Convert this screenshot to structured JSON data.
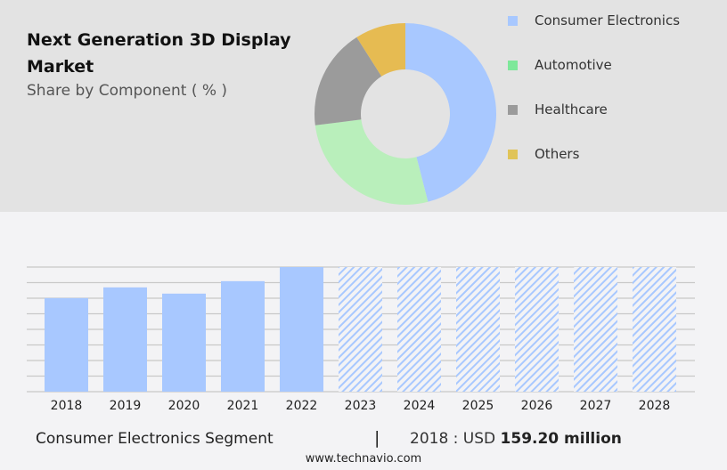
{
  "header": {
    "title": "Next Generation 3D Display Market",
    "subtitle": "Share by Component ( % )"
  },
  "chart_data": [
    {
      "type": "pie",
      "variant": "donut",
      "categories": [
        "Consumer Electronics",
        "Automotive",
        "Healthcare",
        "Others"
      ],
      "values": [
        46,
        27,
        18,
        9
      ],
      "colors": [
        "#a8c8ff",
        "#b9efbb",
        "#9b9b9b",
        "#e6bb52"
      ],
      "legend_colors": [
        "#a8c8ff",
        "#7ee89a",
        "#9b9b9b",
        "#e0c458"
      ],
      "legend_position": "right"
    },
    {
      "type": "bar",
      "categories": [
        "2018",
        "2019",
        "2020",
        "2021",
        "2022",
        "2023",
        "2024",
        "2025",
        "2026",
        "2027",
        "2028"
      ],
      "values": [
        159.2,
        177.4,
        166.8,
        188.0,
        212.0,
        null,
        null,
        null,
        null,
        null,
        null
      ],
      "forecast_from": "2023",
      "ylim": [
        0,
        212
      ],
      "grid": true,
      "color": "#a8c8ff"
    }
  ],
  "footer": {
    "segment": "Consumer Electronics Segment",
    "separator": "|",
    "year_label": "2018 : USD ",
    "value": "159.20 million",
    "url": "www.technavio.com"
  }
}
